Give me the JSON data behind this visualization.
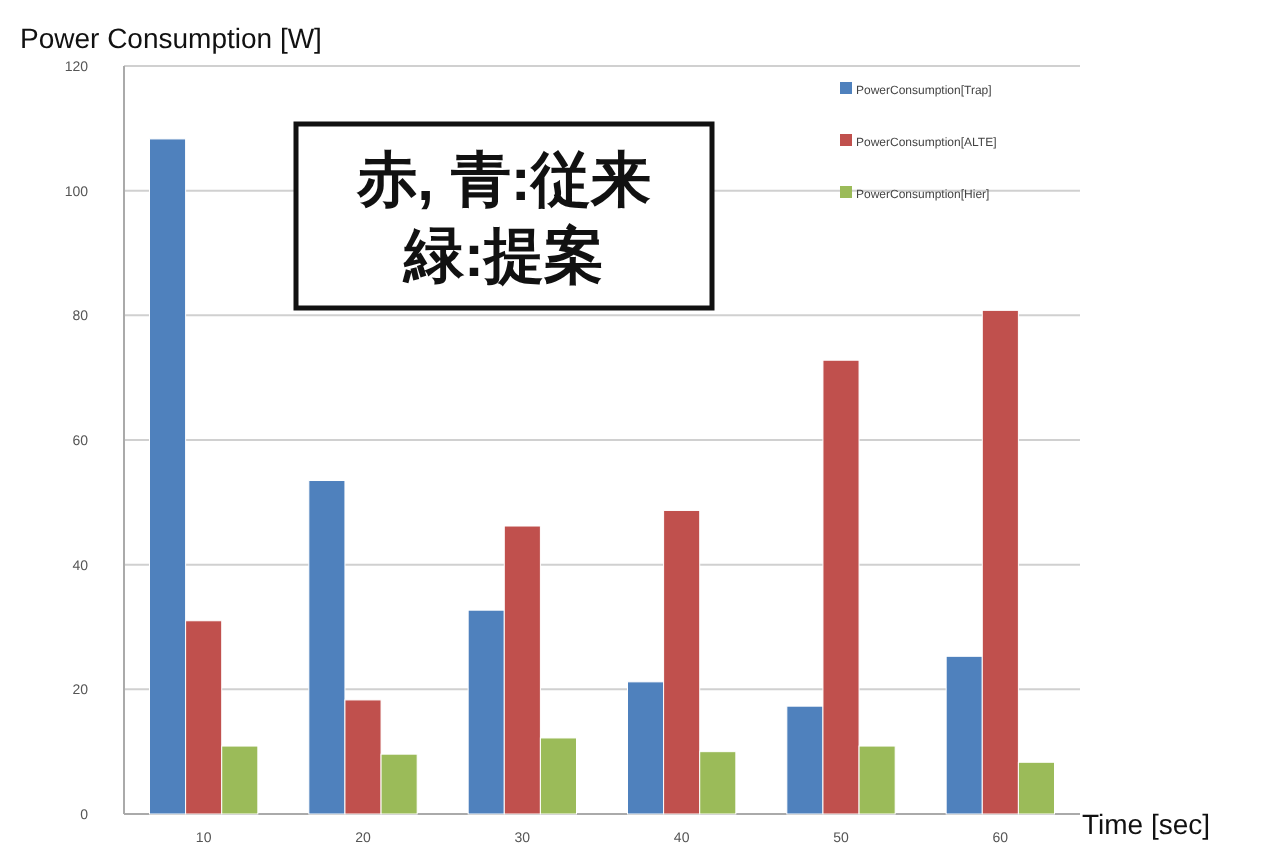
{
  "chart_data": {
    "type": "bar",
    "ylabel": "Power Consumption [W]",
    "xlabel": "Time [sec]",
    "categories": [
      "10",
      "20",
      "30",
      "40",
      "50",
      "60"
    ],
    "series": [
      {
        "name": "PowerConsumption[Trap]",
        "color": "#4f81bd",
        "values": [
          108.3,
          53.5,
          32.7,
          21.2,
          17.3,
          25.3
        ]
      },
      {
        "name": "PowerConsumption[ALTE]",
        "color": "#c0504d",
        "values": [
          31,
          18.3,
          46.2,
          48.7,
          72.8,
          80.8
        ]
      },
      {
        "name": "PowerConsumption[Hier]",
        "color": "#9bbb59",
        "values": [
          10.9,
          9.6,
          12.2,
          10,
          10.9,
          8.3
        ]
      }
    ],
    "ylim": [
      0,
      120
    ],
    "yticks": [
      0,
      20,
      40,
      60,
      80,
      100,
      120
    ],
    "grid": "y",
    "legend": "top right",
    "annotations": [
      "赤, 青:従来",
      "緑:提案"
    ]
  }
}
